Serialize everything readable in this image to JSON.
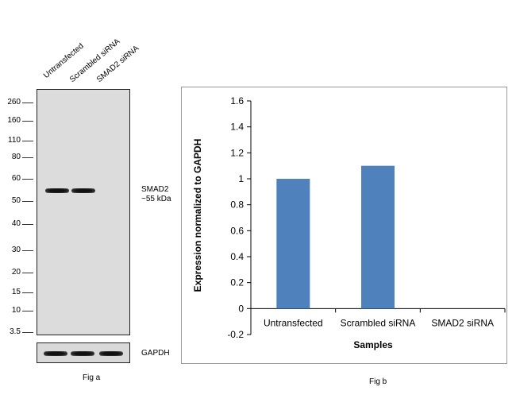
{
  "fig_a": {
    "caption": "Fig a",
    "lanes": [
      "Untransfected",
      "Scrambled siRNA",
      "SMAD2 siRNA"
    ],
    "mw_markers": [
      "260",
      "160",
      "110",
      "80",
      "60",
      "50",
      "40",
      "30",
      "20",
      "15",
      "10",
      "3.5"
    ],
    "target_label": "SMAD2",
    "target_size": "~55 kDa",
    "loading_control": "GAPDH"
  },
  "fig_b": {
    "caption": "Fig b"
  },
  "chart_data": {
    "type": "bar",
    "categories": [
      "Untransfected",
      "Scrambled siRNA",
      "SMAD2 siRNA"
    ],
    "values": [
      1.0,
      1.1,
      0.0
    ],
    "title": "",
    "xlabel": "Samples",
    "ylabel": "Expression normalized to GAPDH",
    "ylim": [
      -0.2,
      1.6
    ],
    "yticks": [
      "1.6",
      "1.4",
      "1.2",
      "1",
      "0.8",
      "0.6",
      "0.4",
      "0.2",
      "0",
      "-0.2"
    ],
    "grid": false,
    "bar_color": "#4F81BD"
  }
}
